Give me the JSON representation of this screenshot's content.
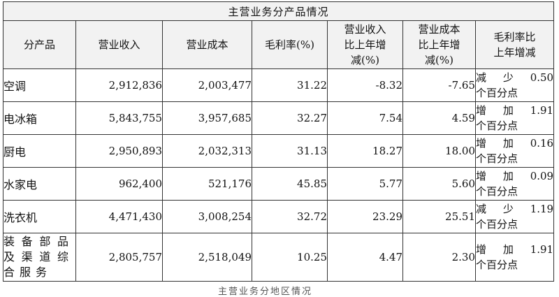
{
  "table": {
    "title": "主营业务分产品情况",
    "headers": {
      "product": "分产品",
      "revenue": "营业收入",
      "cost": "营业成本",
      "margin": "毛利率(%)",
      "rev_change": [
        "营业收入",
        "比上年增",
        "减(%)"
      ],
      "cost_change": [
        "营业成本",
        "比上年增",
        "减(%)"
      ],
      "margin_change": [
        "毛利率比",
        "上年增减"
      ]
    },
    "rows": [
      {
        "product": "空调",
        "revenue": "2,912,836",
        "cost": "2,003,477",
        "margin": "31.22",
        "rev_change": "-8.32",
        "cost_change": "-7.65",
        "margin_change": [
          "减少0.50",
          "个百分点"
        ]
      },
      {
        "product": "电冰箱",
        "revenue": "5,843,755",
        "cost": "3,957,685",
        "margin": "32.27",
        "rev_change": "7.54",
        "cost_change": "4.59",
        "margin_change": [
          "增加1.91",
          "个百分点"
        ]
      },
      {
        "product": "厨电",
        "revenue": "2,950,893",
        "cost": "2,032,313",
        "margin": "31.13",
        "rev_change": "18.27",
        "cost_change": "18.00",
        "margin_change": [
          "增加0.16",
          "个百分点"
        ]
      },
      {
        "product": "水家电",
        "revenue": "962,400",
        "cost": "521,176",
        "margin": "45.85",
        "rev_change": "5.77",
        "cost_change": "5.60",
        "margin_change": [
          "增加0.09",
          "个百分点"
        ]
      },
      {
        "product": "洗衣机",
        "revenue": "4,471,430",
        "cost": "3,008,254",
        "margin": "32.72",
        "rev_change": "23.29",
        "cost_change": "25.51",
        "margin_change": [
          "减少1.19",
          "个百分点"
        ]
      },
      {
        "product": [
          "装备部品",
          "及渠道综",
          "合服务"
        ],
        "revenue": "2,805,757",
        "cost": "2,518,049",
        "margin": "10.25",
        "rev_change": "4.47",
        "cost_change": "2.30",
        "margin_change": [
          "增加1.91",
          "个百分点"
        ]
      }
    ]
  },
  "cutoff_text": "主营业务分地区情况"
}
